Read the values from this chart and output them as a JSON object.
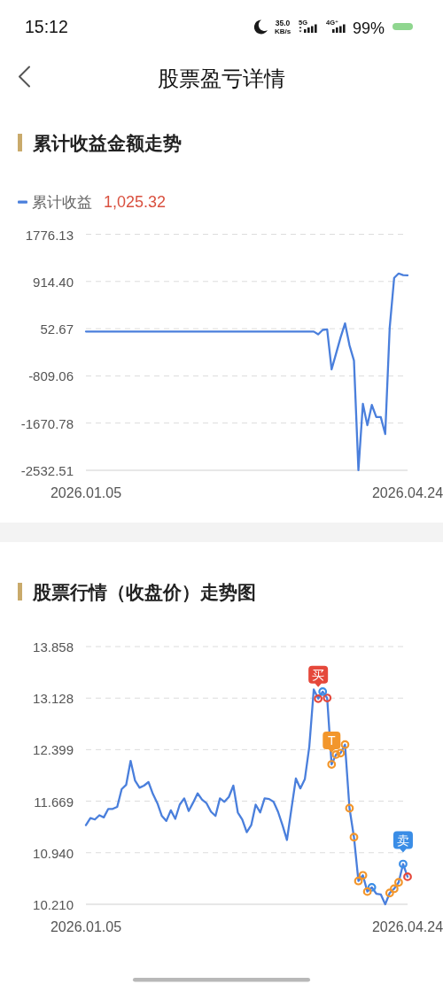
{
  "chart_data": [
    {
      "type": "other",
      "title": "股票盈亏详情",
      "annotations": [
        "15:12",
        "35.0",
        "KB/s",
        "5G",
        "4G⁺",
        "99%"
      ]
    },
    {
      "type": "line",
      "title": "累计收益金额走势",
      "categories": [
        "2026.01.05",
        null,
        null,
        null,
        null,
        null,
        null,
        null,
        null,
        null,
        null,
        null,
        null,
        null,
        null,
        null,
        null,
        null,
        null,
        null,
        null,
        null,
        null,
        null,
        null,
        null,
        null,
        null,
        null,
        null,
        null,
        null,
        null,
        null,
        null,
        null,
        null,
        null,
        null,
        null,
        null,
        null,
        null,
        null,
        null,
        null,
        null,
        null,
        null,
        null,
        null,
        null,
        null,
        null,
        null,
        null,
        null,
        null,
        null,
        null,
        null,
        null,
        null,
        null,
        null,
        null,
        null,
        null,
        null,
        null,
        null,
        null,
        "2026.04.24"
      ],
      "series": [
        {
          "name": "累计收益",
          "color": "#4a7fdc",
          "values": [
            0,
            0,
            0,
            0,
            0,
            0,
            0,
            0,
            0,
            0,
            0,
            0,
            0,
            0,
            0,
            0,
            0,
            0,
            0,
            0,
            0,
            0,
            0,
            0,
            0,
            0,
            0,
            0,
            0,
            0,
            0,
            0,
            0,
            0,
            0,
            0,
            0,
            0,
            0,
            0,
            0,
            0,
            0,
            0,
            0,
            0,
            0,
            0,
            0,
            0,
            0,
            0,
            -50,
            30,
            40,
            -690,
            -400,
            -110,
            150,
            -250,
            -530,
            -2530,
            -1320,
            -1710,
            -1340,
            -1560,
            -1560,
            -1870,
            70,
            980,
            1060,
            1030,
            1025.32
          ]
        }
      ],
      "ylim": [
        -2532.51,
        1776.13
      ],
      "yticks": [
        -2532.51,
        -1670.78,
        -809.06,
        52.67,
        {
          "value": 914.4,
          "label": "914.40"
        },
        1776.13
      ],
      "grid": "y",
      "legend": "top left",
      "annotations": [
        "1,025.32"
      ]
    },
    {
      "type": "line",
      "title": "股票行情（收盘价）走势图",
      "categories": [
        "2026.01.05",
        null,
        null,
        null,
        null,
        null,
        null,
        null,
        null,
        null,
        null,
        null,
        null,
        null,
        null,
        null,
        null,
        null,
        null,
        null,
        null,
        null,
        null,
        null,
        null,
        null,
        null,
        null,
        null,
        null,
        null,
        null,
        null,
        null,
        null,
        null,
        null,
        null,
        null,
        null,
        null,
        null,
        null,
        null,
        null,
        null,
        null,
        null,
        null,
        null,
        null,
        null,
        null,
        null,
        null,
        null,
        null,
        null,
        null,
        null,
        null,
        null,
        null,
        null,
        null,
        null,
        null,
        null,
        null,
        null,
        null,
        null,
        "2026.04.24"
      ],
      "series": [
        {
          "type": "line",
          "color": "#4a7fdc",
          "values": [
            11.33,
            11.43,
            11.41,
            11.47,
            11.44,
            11.56,
            11.56,
            11.59,
            11.84,
            11.9,
            12.24,
            11.96,
            11.86,
            11.89,
            11.94,
            11.77,
            11.64,
            11.46,
            11.39,
            11.54,
            11.42,
            11.62,
            11.71,
            11.53,
            11.65,
            11.78,
            11.69,
            11.64,
            11.52,
            11.46,
            11.71,
            11.66,
            11.73,
            11.89,
            11.51,
            11.41,
            11.23,
            11.33,
            11.62,
            11.51,
            11.71,
            11.7,
            11.66,
            11.52,
            11.33,
            11.12,
            11.56,
            11.99,
            11.85,
            11.98,
            12.44,
            13.25,
            13.12,
            13.22,
            13.13,
            12.19,
            12.33,
            12.35,
            12.47,
            11.57,
            11.16,
            10.54,
            10.62,
            10.39,
            10.45,
            10.36,
            10.35,
            10.21,
            10.37,
            10.43,
            10.52,
            10.78,
            10.6
          ]
        },
        {
          "type": "scatter",
          "marker": "circle",
          "color": "#e5483b",
          "values": [
            null,
            null,
            null,
            null,
            null,
            null,
            null,
            null,
            null,
            null,
            null,
            null,
            null,
            null,
            null,
            null,
            null,
            null,
            null,
            null,
            null,
            null,
            null,
            null,
            null,
            null,
            null,
            null,
            null,
            null,
            null,
            null,
            null,
            null,
            null,
            null,
            null,
            null,
            null,
            null,
            null,
            null,
            null,
            null,
            null,
            null,
            null,
            null,
            null,
            null,
            null,
            null,
            13.12,
            null,
            13.13,
            null,
            null,
            null,
            null,
            null,
            null,
            null,
            null,
            null,
            null,
            null,
            null,
            null,
            null,
            null,
            null,
            null,
            10.6
          ],
          "value_labels": [
            null,
            null,
            null,
            null,
            null,
            null,
            null,
            null,
            null,
            null,
            null,
            null,
            null,
            null,
            null,
            null,
            null,
            null,
            null,
            null,
            null,
            null,
            null,
            null,
            null,
            null,
            null,
            null,
            null,
            null,
            null,
            null,
            null,
            null,
            null,
            null,
            null,
            null,
            null,
            null,
            null,
            null,
            null,
            null,
            null,
            null,
            null,
            null,
            null,
            null,
            null,
            null,
            "买",
            null,
            null,
            null,
            null,
            null,
            null,
            null,
            null,
            null,
            null,
            null,
            null,
            null,
            null,
            null,
            null,
            null,
            null,
            null,
            null
          ]
        },
        {
          "type": "scatter",
          "marker": "circle",
          "color": "#3a8de6",
          "values": [
            null,
            null,
            null,
            null,
            null,
            null,
            null,
            null,
            null,
            null,
            null,
            null,
            null,
            null,
            null,
            null,
            null,
            null,
            null,
            null,
            null,
            null,
            null,
            null,
            null,
            null,
            null,
            null,
            null,
            null,
            null,
            null,
            null,
            null,
            null,
            null,
            null,
            null,
            null,
            null,
            null,
            null,
            null,
            null,
            null,
            null,
            null,
            null,
            null,
            null,
            null,
            null,
            null,
            13.22,
            null,
            null,
            null,
            null,
            null,
            null,
            null,
            null,
            null,
            null,
            10.45,
            null,
            null,
            null,
            null,
            null,
            null,
            10.78,
            null
          ],
          "value_labels": [
            null,
            null,
            null,
            null,
            null,
            null,
            null,
            null,
            null,
            null,
            null,
            null,
            null,
            null,
            null,
            null,
            null,
            null,
            null,
            null,
            null,
            null,
            null,
            null,
            null,
            null,
            null,
            null,
            null,
            null,
            null,
            null,
            null,
            null,
            null,
            null,
            null,
            null,
            null,
            null,
            null,
            null,
            null,
            null,
            null,
            null,
            null,
            null,
            null,
            null,
            null,
            null,
            null,
            null,
            null,
            null,
            null,
            null,
            null,
            null,
            null,
            null,
            null,
            null,
            null,
            null,
            null,
            null,
            null,
            null,
            null,
            "卖",
            null
          ]
        },
        {
          "type": "scatter",
          "marker": "circle",
          "color": "#f2962c",
          "values": [
            null,
            null,
            null,
            null,
            null,
            null,
            null,
            null,
            null,
            null,
            null,
            null,
            null,
            null,
            null,
            null,
            null,
            null,
            null,
            null,
            null,
            null,
            null,
            null,
            null,
            null,
            null,
            null,
            null,
            null,
            null,
            null,
            null,
            null,
            null,
            null,
            null,
            null,
            null,
            null,
            null,
            null,
            null,
            null,
            null,
            null,
            null,
            null,
            null,
            null,
            null,
            null,
            null,
            null,
            null,
            12.19,
            12.33,
            12.35,
            12.47,
            11.57,
            11.16,
            10.54,
            10.62,
            10.39,
            null,
            null,
            null,
            null,
            10.37,
            10.43,
            10.52,
            null,
            null
          ],
          "value_labels": [
            null,
            null,
            null,
            null,
            null,
            null,
            null,
            null,
            null,
            null,
            null,
            null,
            null,
            null,
            null,
            null,
            null,
            null,
            null,
            null,
            null,
            null,
            null,
            null,
            null,
            null,
            null,
            null,
            null,
            null,
            null,
            null,
            null,
            null,
            null,
            null,
            null,
            null,
            null,
            null,
            null,
            null,
            null,
            null,
            null,
            null,
            null,
            null,
            null,
            null,
            null,
            null,
            null,
            null,
            null,
            "T",
            null,
            null,
            null,
            null,
            null,
            null,
            null,
            null,
            null,
            null,
            null,
            null,
            null,
            null,
            null,
            null,
            null
          ]
        }
      ],
      "ylim": [
        10.21,
        13.858
      ],
      "yticks": [
        {
          "value": 10.21,
          "label": "10.210"
        },
        {
          "value": 10.94,
          "label": "10.940"
        },
        11.669,
        12.399,
        13.128,
        13.858
      ],
      "grid": "y"
    }
  ]
}
